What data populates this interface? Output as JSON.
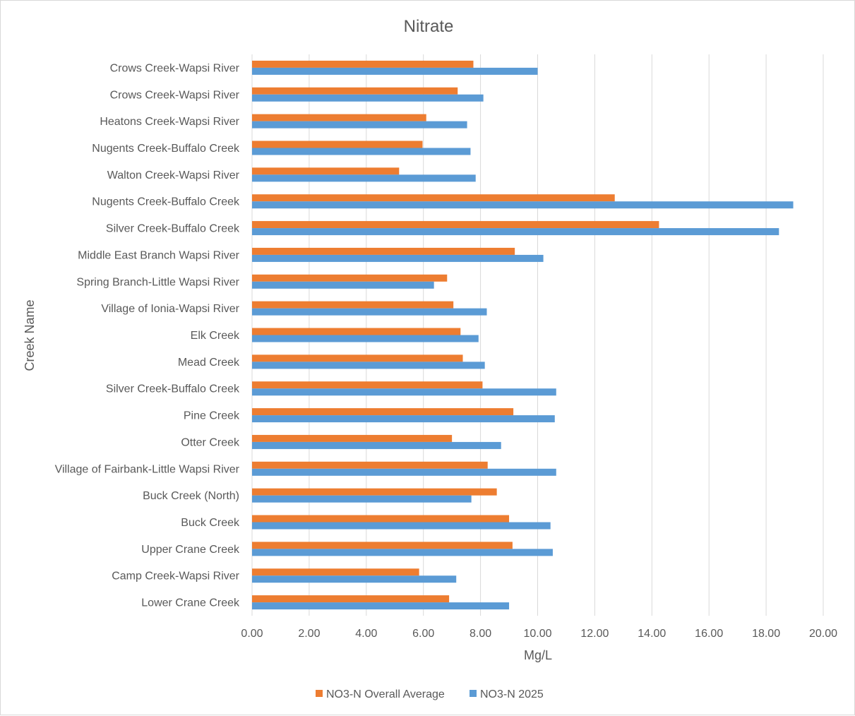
{
  "chart_data": {
    "type": "bar",
    "orientation": "horizontal",
    "title": "Nitrate",
    "xlabel": "Mg/L",
    "ylabel": "Creek Name",
    "xlim": [
      0,
      20
    ],
    "x_tick_step": 2,
    "x_tick_labels": [
      "0.00",
      "2.00",
      "4.00",
      "6.00",
      "8.00",
      "10.00",
      "12.00",
      "14.00",
      "16.00",
      "18.00",
      "20.00"
    ],
    "grid": true,
    "legend_position": "bottom",
    "categories": [
      "Crows Creek-Wapsi River",
      "Crows Creek-Wapsi River",
      "Heatons Creek-Wapsi River",
      "Nugents Creek-Buffalo Creek",
      "Walton Creek-Wapsi River",
      "Nugents Creek-Buffalo Creek",
      "Silver Creek-Buffalo Creek",
      "Middle East Branch Wapsi River",
      "Spring Branch-Little Wapsi River",
      "Village of Ionia-Wapsi River",
      "Elk Creek",
      "Mead Creek",
      "Silver Creek-Buffalo Creek",
      "Pine Creek",
      "Otter Creek",
      "Village of Fairbank-Little Wapsi River",
      "Buck Creek (North)",
      "Buck Creek",
      "Upper Crane Creek",
      "Camp Creek-Wapsi River",
      "Lower Crane Creek"
    ],
    "series": [
      {
        "name": "NO3-N Overall Average",
        "color": "#ed7d31",
        "values": [
          7.75,
          7.2,
          6.1,
          5.97,
          5.15,
          12.7,
          14.25,
          9.2,
          6.83,
          7.05,
          7.3,
          7.38,
          8.07,
          9.15,
          7.0,
          8.25,
          8.57,
          9.0,
          9.12,
          5.85,
          6.9
        ]
      },
      {
        "name": "NO3-N 2025",
        "color": "#5b9bd5",
        "values": [
          10.0,
          8.1,
          7.53,
          7.65,
          7.83,
          18.95,
          18.45,
          10.2,
          6.37,
          8.22,
          7.93,
          8.15,
          10.65,
          10.6,
          8.72,
          10.65,
          7.68,
          10.45,
          10.53,
          7.15,
          9.0
        ]
      }
    ]
  },
  "colors": {
    "gridline": "#d9d9d9",
    "text": "#595959",
    "border": "#d9d9d9"
  }
}
